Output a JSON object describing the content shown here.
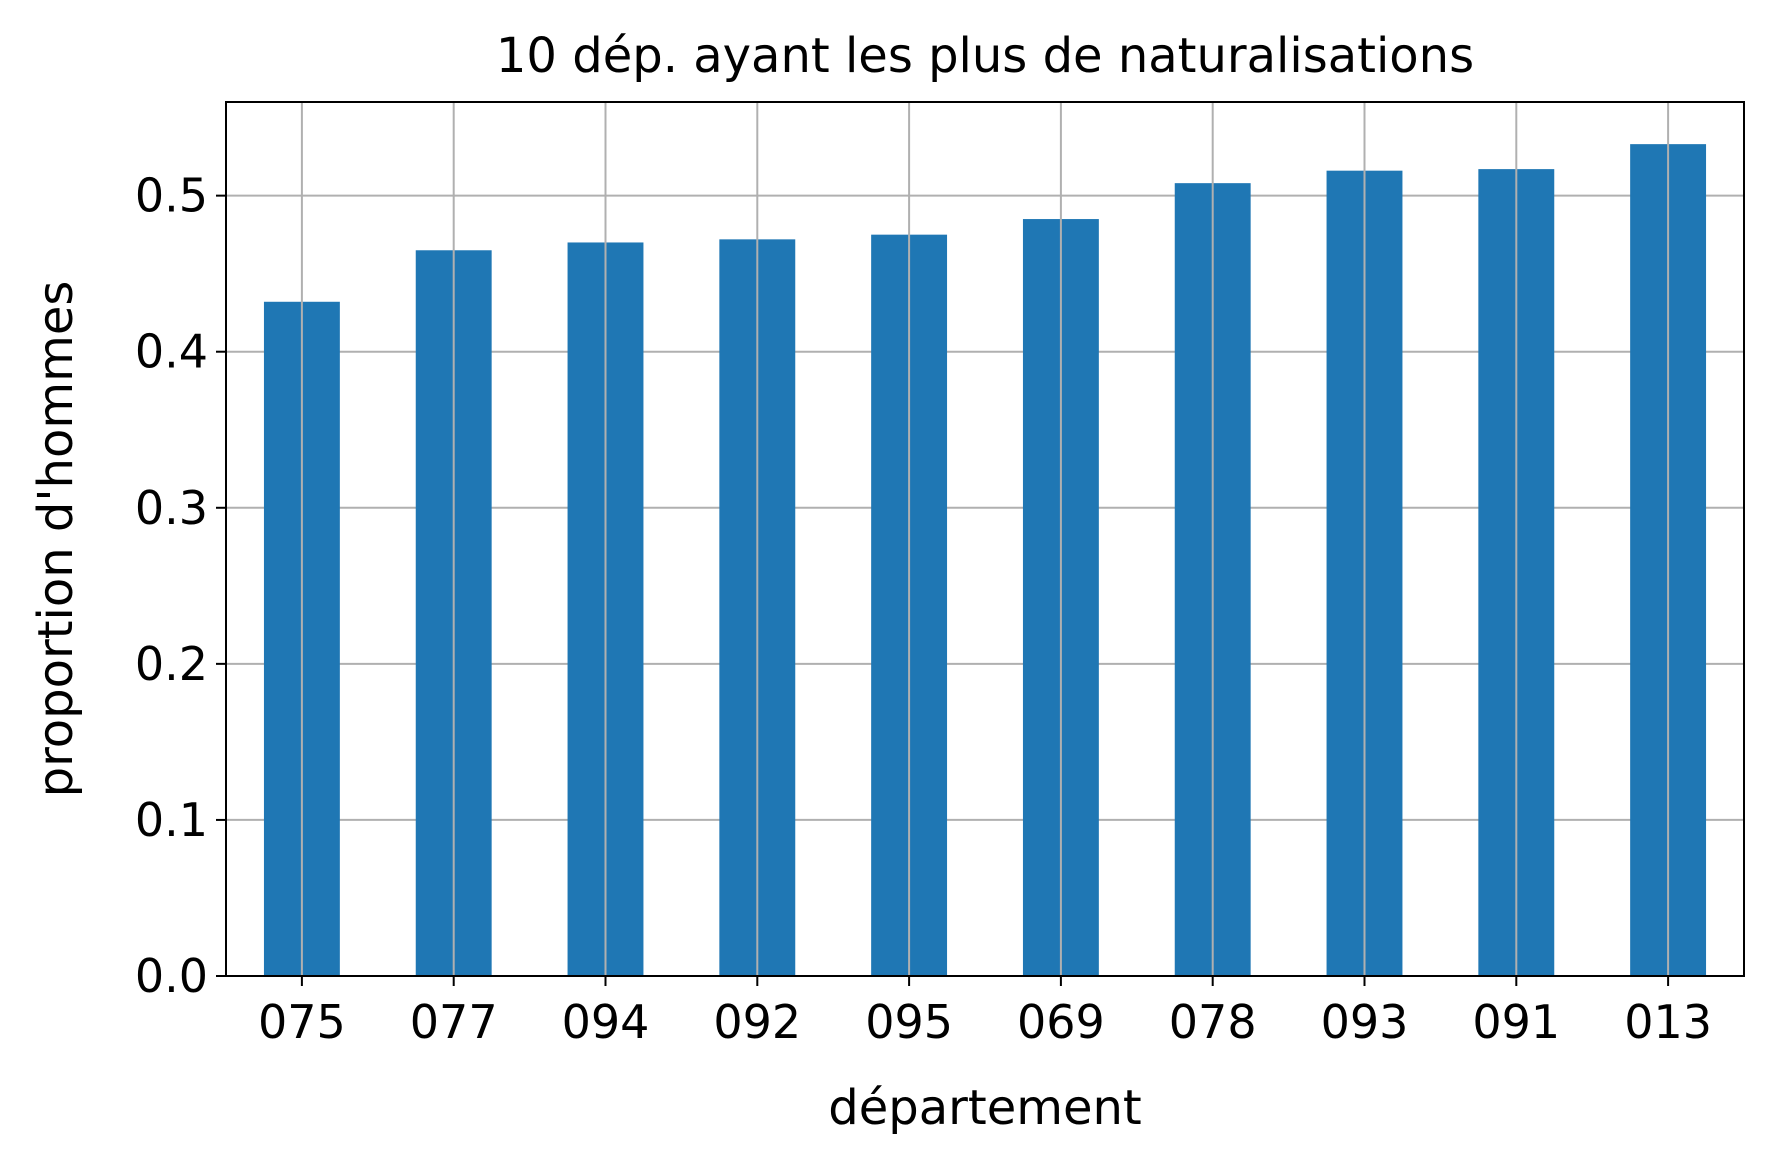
{
  "chart_data": {
    "type": "bar",
    "title": "10 dép. ayant les plus de naturalisations",
    "xlabel": "département",
    "ylabel": "proportion d'hommes",
    "categories": [
      "075",
      "077",
      "094",
      "092",
      "095",
      "069",
      "078",
      "093",
      "091",
      "013"
    ],
    "values": [
      0.432,
      0.465,
      0.47,
      0.472,
      0.475,
      0.485,
      0.508,
      0.516,
      0.517,
      0.533
    ],
    "ylim": [
      0,
      0.56
    ],
    "yticks": [
      0.0,
      0.1,
      0.2,
      0.3,
      0.4,
      0.5
    ],
    "ytick_labels": [
      "0.0",
      "0.1",
      "0.2",
      "0.3",
      "0.4",
      "0.5"
    ],
    "grid": true,
    "bar_color": "#1f77b4",
    "grid_color": "#b0b0b0"
  }
}
